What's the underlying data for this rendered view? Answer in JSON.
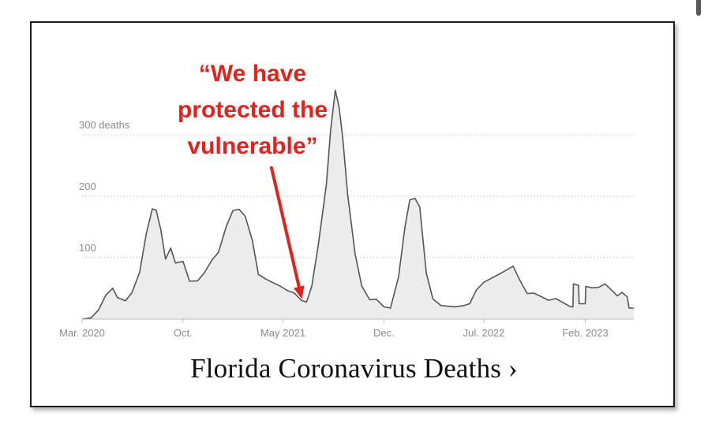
{
  "chart_data": {
    "type": "area",
    "title": "Florida Coronavirus Deaths ›",
    "unit_label": "300 deaths",
    "y_ticks": [
      {
        "value": 100,
        "label": "100"
      },
      {
        "value": 200,
        "label": "200"
      },
      {
        "value": 300,
        "label": "300 deaths"
      }
    ],
    "x_ticks": [
      {
        "date": "2020-03-01",
        "label": "Mar. 2020"
      },
      {
        "date": "2020-10-01",
        "label": "Oct."
      },
      {
        "date": "2021-05-01",
        "label": "May 2021"
      },
      {
        "date": "2021-12-01",
        "label": "Dec."
      },
      {
        "date": "2022-07-01",
        "label": "Jul. 2022"
      },
      {
        "date": "2023-02-01",
        "label": "Feb. 2023"
      }
    ],
    "xlim": [
      "2020-03-01",
      "2023-05-15"
    ],
    "ylim": [
      0,
      340
    ],
    "grid": true,
    "series": [
      {
        "color": "#555555",
        "fill": "#ececec",
        "points": [
          [
            "2020-03-01",
            0
          ],
          [
            "2020-03-20",
            2
          ],
          [
            "2020-04-05",
            15
          ],
          [
            "2020-04-20",
            42
          ],
          [
            "2020-05-05",
            48
          ],
          [
            "2020-05-15",
            35
          ],
          [
            "2020-06-01",
            32
          ],
          [
            "2020-06-15",
            40
          ],
          [
            "2020-07-01",
            75
          ],
          [
            "2020-07-15",
            140
          ],
          [
            "2020-07-28",
            183
          ],
          [
            "2020-08-05",
            175
          ],
          [
            "2020-08-15",
            145
          ],
          [
            "2020-08-25",
            100
          ],
          [
            "2020-09-05",
            112
          ],
          [
            "2020-09-15",
            90
          ],
          [
            "2020-10-01",
            95
          ],
          [
            "2020-10-15",
            65
          ],
          [
            "2020-11-01",
            60
          ],
          [
            "2020-11-15",
            75
          ],
          [
            "2020-12-01",
            98
          ],
          [
            "2020-12-15",
            105
          ],
          [
            "2021-01-01",
            150
          ],
          [
            "2021-01-15",
            178
          ],
          [
            "2021-01-28",
            182
          ],
          [
            "2021-02-10",
            165
          ],
          [
            "2021-02-25",
            128
          ],
          [
            "2021-03-10",
            75
          ],
          [
            "2021-03-25",
            62
          ],
          [
            "2021-04-10",
            58
          ],
          [
            "2021-04-25",
            55
          ],
          [
            "2021-05-10",
            50
          ],
          [
            "2021-05-25",
            40
          ],
          [
            "2021-06-10",
            30
          ],
          [
            "2021-06-20",
            30
          ],
          [
            "2021-07-01",
            50
          ],
          [
            "2021-07-15",
            120
          ],
          [
            "2021-08-01",
            220
          ],
          [
            "2021-08-10",
            310
          ],
          [
            "2021-08-20",
            370
          ],
          [
            "2021-08-28",
            345
          ],
          [
            "2021-09-05",
            295
          ],
          [
            "2021-09-15",
            200
          ],
          [
            "2021-10-01",
            105
          ],
          [
            "2021-10-15",
            55
          ],
          [
            "2021-11-01",
            35
          ],
          [
            "2021-11-15",
            30
          ],
          [
            "2021-12-01",
            20
          ],
          [
            "2021-12-15",
            18
          ],
          [
            "2022-01-01",
            65
          ],
          [
            "2022-01-15",
            150
          ],
          [
            "2022-01-25",
            195
          ],
          [
            "2022-02-05",
            200
          ],
          [
            "2022-02-15",
            180
          ],
          [
            "2022-03-01",
            75
          ],
          [
            "2022-03-15",
            35
          ],
          [
            "2022-04-01",
            22
          ],
          [
            "2022-05-01",
            20
          ],
          [
            "2022-05-20",
            22
          ],
          [
            "2022-06-01",
            25
          ],
          [
            "2022-06-15",
            45
          ],
          [
            "2022-07-01",
            60
          ],
          [
            "2022-07-20",
            70
          ],
          [
            "2022-08-15",
            75
          ],
          [
            "2022-09-01",
            85
          ],
          [
            "2022-09-15",
            65
          ],
          [
            "2022-10-01",
            45
          ],
          [
            "2022-10-15",
            40
          ],
          [
            "2022-11-01",
            36
          ],
          [
            "2022-11-15",
            33
          ],
          [
            "2022-12-01",
            30
          ],
          [
            "2022-12-15",
            26
          ],
          [
            "2023-01-01",
            20
          ],
          [
            "2023-01-06",
            20
          ],
          [
            "2023-01-07",
            55
          ],
          [
            "2023-01-18",
            55
          ],
          [
            "2023-01-19",
            25
          ],
          [
            "2023-02-01",
            25
          ],
          [
            "2023-02-02",
            52
          ],
          [
            "2023-02-15",
            52
          ],
          [
            "2023-03-01",
            55
          ],
          [
            "2023-03-15",
            55
          ],
          [
            "2023-04-01",
            45
          ],
          [
            "2023-04-10",
            40
          ],
          [
            "2023-04-20",
            40
          ],
          [
            "2023-05-01",
            35
          ],
          [
            "2023-05-05",
            18
          ],
          [
            "2023-05-15",
            18
          ]
        ]
      }
    ],
    "annotation": {
      "lines": [
        "“We have",
        "protected the",
        "vulnerable”"
      ],
      "color": "#e4221b",
      "points_to": {
        "date": "2021-06-10",
        "value": 30
      }
    }
  }
}
